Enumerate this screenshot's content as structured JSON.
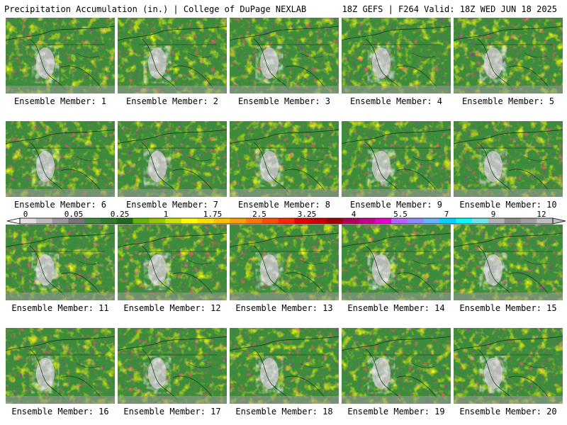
{
  "header": {
    "left": "Precipitation Accumulation (in.) | College of DuPage NEXLAB",
    "right": "18Z GEFS | F264 Valid: 18Z WED JUN 18 2025"
  },
  "panels": [
    {
      "label": "Ensemble Member: 1"
    },
    {
      "label": "Ensemble Member: 2"
    },
    {
      "label": "Ensemble Member: 3"
    },
    {
      "label": "Ensemble Member: 4"
    },
    {
      "label": "Ensemble Member: 5"
    },
    {
      "label": "Ensemble Member: 6"
    },
    {
      "label": "Ensemble Member: 7"
    },
    {
      "label": "Ensemble Member: 8"
    },
    {
      "label": "Ensemble Member: 9"
    },
    {
      "label": "Ensemble Member: 10"
    },
    {
      "label": "Ensemble Member: 11"
    },
    {
      "label": "Ensemble Member: 12"
    },
    {
      "label": "Ensemble Member: 13"
    },
    {
      "label": "Ensemble Member: 14"
    },
    {
      "label": "Ensemble Member: 15"
    },
    {
      "label": "Ensemble Member: 16"
    },
    {
      "label": "Ensemble Member: 17"
    },
    {
      "label": "Ensemble Member: 18"
    },
    {
      "label": "Ensemble Member: 19"
    },
    {
      "label": "Ensemble Member: 20"
    }
  ],
  "colorbar": {
    "ticks": [
      "0",
      "0.05",
      "0.25",
      "1",
      "1.75",
      "2.5",
      "3.25",
      "4",
      "5.5",
      "7",
      "9",
      "12"
    ],
    "colors": [
      "#e0e0e0",
      "#bdbdbd",
      "#9a9a9a",
      "#777777",
      "#3f8a3f",
      "#2e7d2e",
      "#1f6b1f",
      "#64b400",
      "#96c800",
      "#c8e600",
      "#ffff00",
      "#ffe000",
      "#ffc000",
      "#ffa000",
      "#ff7800",
      "#ff5000",
      "#ff2800",
      "#e60000",
      "#c80000",
      "#a00000",
      "#b4005a",
      "#c8008c",
      "#e600c8",
      "#b464ff",
      "#8c8cff",
      "#64b4ff",
      "#00d2ff",
      "#00ffff",
      "#6ee6e6",
      "#b4b4b4",
      "#8c8c8c",
      "#a0a0a0",
      "#c0c0c0"
    ]
  }
}
